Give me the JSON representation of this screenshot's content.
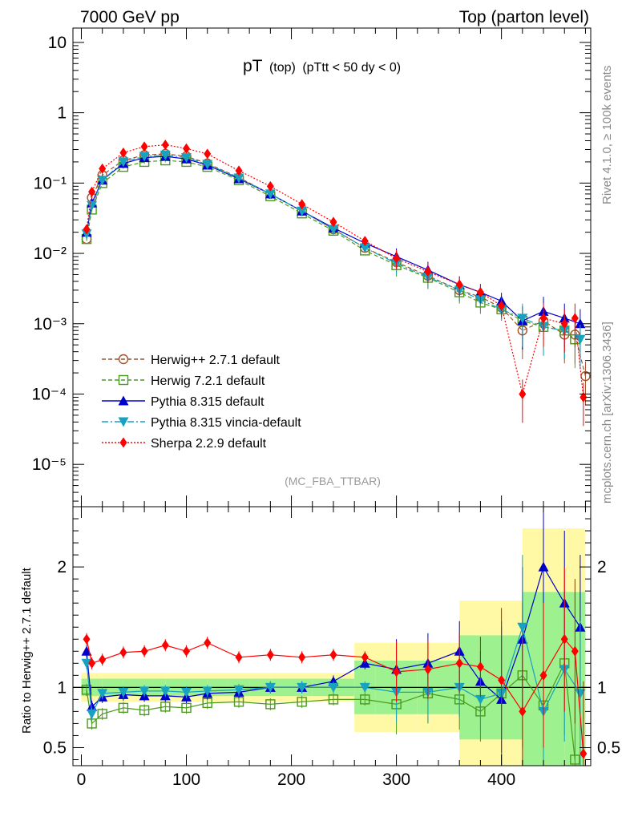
{
  "header": {
    "left": "7000 GeV pp",
    "right": "Top (parton level)"
  },
  "side_labels": {
    "rivet": "Rivet 4.1.0, ≥ 100k events",
    "mcplots": "mcplots.cern.ch [arXiv:1306.3436]"
  },
  "chart_data": [
    {
      "type": "line",
      "panel": "main",
      "title_main": "pT",
      "title_sub": "(top)",
      "title_cut": "(pTtt < 50 dy < 0)",
      "analysis_tag": "(MC_FBA_TTBAR)",
      "xlabel": "",
      "ylabel": "",
      "yscale": "log",
      "xlim": [
        -8,
        485
      ],
      "ylim": [
        2.5e-06,
        16
      ],
      "yticks": [
        {
          "value": 10,
          "label": "10"
        },
        {
          "value": 1,
          "label": "1"
        },
        {
          "value": 0.1,
          "label": "10⁻¹"
        },
        {
          "value": 0.01,
          "label": "10⁻²"
        },
        {
          "value": 0.001,
          "label": "10⁻³"
        },
        {
          "value": 0.0001,
          "label": "10⁻⁴"
        },
        {
          "value": 1e-05,
          "label": "10⁻⁵"
        }
      ],
      "legend_position": "lower-left",
      "series": [
        {
          "name": "Herwig++ 2.7.1 default",
          "color": "#a0522d",
          "marker": "open-circle",
          "dash": "5,3",
          "x": [
            5,
            10,
            20,
            40,
            60,
            80,
            100,
            120,
            150,
            180,
            210,
            240,
            270,
            300,
            330,
            360,
            380,
            400,
            420,
            440,
            460,
            470,
            480
          ],
          "values": [
            0.016,
            0.062,
            0.13,
            0.21,
            0.25,
            0.26,
            0.24,
            0.19,
            0.12,
            0.07,
            0.04,
            0.022,
            0.012,
            0.0075,
            0.0048,
            0.003,
            0.0024,
            0.0017,
            0.0008,
            0.0011,
            0.0007,
            0.0007,
            0.00018
          ]
        },
        {
          "name": "Herwig 7.2.1 default",
          "color": "#4a9a1e",
          "marker": "open-square",
          "dash": "5,3",
          "x": [
            5,
            10,
            20,
            40,
            60,
            80,
            100,
            120,
            150,
            180,
            210,
            240,
            270,
            300,
            330,
            360,
            380,
            400,
            420,
            440,
            460,
            470
          ],
          "values": [
            0.016,
            0.042,
            0.1,
            0.17,
            0.2,
            0.21,
            0.2,
            0.17,
            0.11,
            0.065,
            0.037,
            0.021,
            0.011,
            0.0068,
            0.0045,
            0.0028,
            0.002,
            0.0016,
            0.0011,
            0.0009,
            0.0008,
            0.0006
          ]
        },
        {
          "name": "Pythia 8.315 default",
          "color": "#0000cd",
          "marker": "filled-triangle-up",
          "dash": "",
          "x": [
            5,
            10,
            20,
            40,
            60,
            80,
            100,
            120,
            150,
            180,
            210,
            240,
            270,
            300,
            330,
            360,
            380,
            400,
            420,
            440,
            460,
            475
          ],
          "values": [
            0.02,
            0.052,
            0.11,
            0.19,
            0.23,
            0.24,
            0.22,
            0.18,
            0.115,
            0.07,
            0.04,
            0.023,
            0.014,
            0.009,
            0.0058,
            0.0036,
            0.0028,
            0.0021,
            0.0011,
            0.0015,
            0.0012,
            0.001
          ]
        },
        {
          "name": "Pythia 8.315 vincia-default",
          "color": "#17a2c0",
          "marker": "filled-triangle-down",
          "dash": "8,3,2,3",
          "x": [
            5,
            10,
            20,
            40,
            60,
            80,
            100,
            120,
            150,
            180,
            210,
            240,
            270,
            300,
            330,
            360,
            380,
            400,
            420,
            440,
            460,
            475
          ],
          "values": [
            0.019,
            0.048,
            0.11,
            0.2,
            0.24,
            0.25,
            0.23,
            0.185,
            0.118,
            0.07,
            0.04,
            0.022,
            0.012,
            0.0072,
            0.0046,
            0.003,
            0.0022,
            0.0016,
            0.0012,
            0.0009,
            0.0008,
            0.0006
          ]
        },
        {
          "name": "Sherpa 2.2.9 default",
          "color": "#ff0000",
          "marker": "filled-diamond",
          "dash": "2,2",
          "x": [
            5,
            10,
            20,
            40,
            60,
            80,
            100,
            120,
            150,
            180,
            210,
            240,
            270,
            300,
            330,
            360,
            380,
            400,
            420,
            440,
            460,
            470,
            478
          ],
          "values": [
            0.022,
            0.075,
            0.16,
            0.27,
            0.33,
            0.35,
            0.31,
            0.26,
            0.15,
            0.09,
            0.05,
            0.028,
            0.015,
            0.0085,
            0.0055,
            0.0036,
            0.0028,
            0.0018,
            0.0001,
            0.0012,
            0.001,
            0.0012,
            9e-05
          ]
        }
      ]
    },
    {
      "type": "line",
      "panel": "ratio",
      "ylabel": "Ratio to Herwig++ 2.7.1 default",
      "xlabel": "",
      "xlim": [
        -8,
        485
      ],
      "ylim": [
        0.35,
        2.5
      ],
      "xticks": [
        0,
        100,
        200,
        300,
        400
      ],
      "yticks": [
        {
          "value": 0.5,
          "label": "0.5"
        },
        {
          "value": 1,
          "label": "1"
        },
        {
          "value": 2,
          "label": "2"
        }
      ],
      "reference": 1,
      "series": [
        {
          "name": "Herwig 7.2.1 default",
          "color": "#4a9a1e",
          "marker": "open-square",
          "x": [
            5,
            10,
            20,
            40,
            60,
            80,
            100,
            120,
            150,
            180,
            210,
            240,
            270,
            300,
            330,
            360,
            380,
            400,
            420,
            440,
            460,
            470
          ],
          "values": [
            0.98,
            0.7,
            0.78,
            0.83,
            0.81,
            0.84,
            0.83,
            0.87,
            0.88,
            0.86,
            0.88,
            0.9,
            0.9,
            0.86,
            0.95,
            0.9,
            0.8,
            0.95,
            1.1,
            0.85,
            1.2,
            0.4
          ]
        },
        {
          "name": "Pythia 8.315 default",
          "color": "#0000cd",
          "marker": "filled-triangle-up",
          "x": [
            5,
            10,
            20,
            40,
            60,
            80,
            100,
            120,
            150,
            180,
            210,
            240,
            270,
            300,
            330,
            360,
            380,
            400,
            420,
            440,
            460,
            475
          ],
          "values": [
            1.3,
            0.84,
            0.92,
            0.94,
            0.93,
            0.93,
            0.92,
            0.95,
            0.96,
            1.0,
            1.0,
            1.05,
            1.2,
            1.15,
            1.2,
            1.3,
            1.05,
            0.9,
            1.4,
            2.0,
            1.7,
            1.5
          ]
        },
        {
          "name": "Pythia 8.315 vincia-default",
          "color": "#17a2c0",
          "marker": "filled-triangle-down",
          "x": [
            5,
            10,
            20,
            40,
            60,
            80,
            100,
            120,
            150,
            180,
            210,
            240,
            270,
            300,
            330,
            360,
            380,
            400,
            420,
            440,
            460,
            475
          ],
          "values": [
            1.2,
            0.78,
            0.95,
            0.96,
            0.97,
            0.97,
            0.96,
            0.97,
            0.98,
            1.0,
            1.0,
            1.0,
            1.0,
            0.96,
            0.96,
            1.0,
            0.9,
            0.95,
            1.5,
            0.8,
            1.15,
            0.95
          ]
        },
        {
          "name": "Sherpa 2.2.9 default",
          "color": "#ff0000",
          "marker": "filled-diamond",
          "x": [
            5,
            10,
            20,
            40,
            60,
            80,
            100,
            120,
            150,
            180,
            210,
            240,
            270,
            300,
            330,
            360,
            380,
            400,
            420,
            440,
            460,
            470,
            478
          ],
          "values": [
            1.4,
            1.2,
            1.23,
            1.29,
            1.3,
            1.35,
            1.3,
            1.37,
            1.25,
            1.27,
            1.25,
            1.27,
            1.25,
            1.13,
            1.15,
            1.2,
            1.17,
            1.06,
            0.8,
            1.1,
            1.4,
            1.3,
            0.45
          ]
        }
      ]
    }
  ]
}
